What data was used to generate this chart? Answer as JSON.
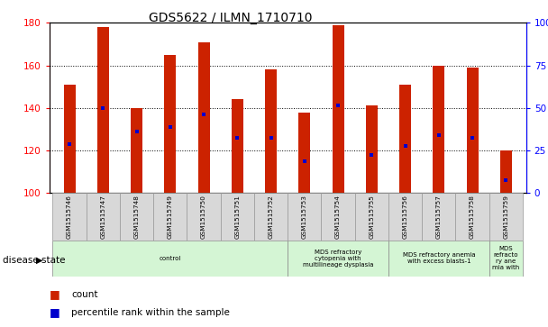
{
  "title": "GDS5622 / ILMN_1710710",
  "samples": [
    "GSM1515746",
    "GSM1515747",
    "GSM1515748",
    "GSM1515749",
    "GSM1515750",
    "GSM1515751",
    "GSM1515752",
    "GSM1515753",
    "GSM1515754",
    "GSM1515755",
    "GSM1515756",
    "GSM1515757",
    "GSM1515758",
    "GSM1515759"
  ],
  "counts": [
    151,
    178,
    140,
    165,
    171,
    144,
    158,
    138,
    179,
    141,
    151,
    160,
    159,
    120
  ],
  "percentile_ranks_left_axis": [
    123,
    140,
    129,
    131,
    137,
    126,
    126,
    115,
    141,
    118,
    122,
    127,
    126,
    106
  ],
  "ylim_left": [
    100,
    180
  ],
  "ylim_right": [
    0,
    100
  ],
  "yticks_left": [
    100,
    120,
    140,
    160,
    180
  ],
  "yticks_right": [
    0,
    25,
    50,
    75,
    100
  ],
  "bar_color": "#cc2200",
  "dot_color": "#0000cc",
  "background_color": "#ffffff",
  "plot_bg_color": "#ffffff",
  "grid_color": "#000000",
  "disease_groups": [
    {
      "label": "control",
      "start": 0,
      "end": 7,
      "color": "#d4f5d4"
    },
    {
      "label": "MDS refractory\ncytopenia with\nmultilineage dysplasia",
      "start": 7,
      "end": 10,
      "color": "#d4f5d4"
    },
    {
      "label": "MDS refractory anemia\nwith excess blasts-1",
      "start": 10,
      "end": 13,
      "color": "#d4f5d4"
    },
    {
      "label": "MDS\nrefracto\nry ane\nmia with",
      "start": 13,
      "end": 14,
      "color": "#d4f5d4"
    }
  ],
  "disease_state_label": "disease state",
  "legend_count_label": "count",
  "legend_pct_label": "percentile rank within the sample",
  "bar_color_legend": "#cc2200",
  "dot_color_legend": "#0000cc"
}
